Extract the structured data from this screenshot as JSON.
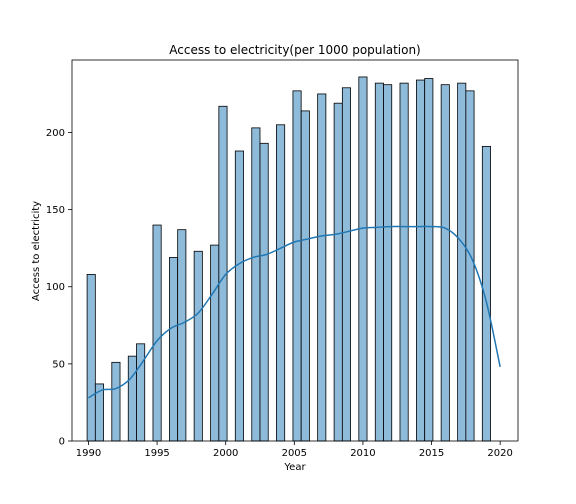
{
  "chart_data": {
    "type": "bar",
    "title": "Access to electricity(per 1000 population)",
    "xlabel": "Year",
    "ylabel": "Access to electricity",
    "xlim": [
      1988.8,
      2021.3
    ],
    "ylim": [
      0,
      247
    ],
    "xticks": [
      1990,
      1995,
      2000,
      2005,
      2010,
      2015,
      2020
    ],
    "yticks": [
      0,
      50,
      100,
      150,
      200
    ],
    "grid": false,
    "bar_width_years": 0.6,
    "bar_color": "#8fbbda",
    "line_color": "#1f77b4",
    "bars": [
      {
        "x": 1990.2,
        "value": 108
      },
      {
        "x": 1990.8,
        "value": 37
      },
      {
        "x": 1992.0,
        "value": 51
      },
      {
        "x": 1993.2,
        "value": 55
      },
      {
        "x": 1993.8,
        "value": 63
      },
      {
        "x": 1995.0,
        "value": 140
      },
      {
        "x": 1996.2,
        "value": 119
      },
      {
        "x": 1996.8,
        "value": 137
      },
      {
        "x": 1998.0,
        "value": 123
      },
      {
        "x": 1999.2,
        "value": 127
      },
      {
        "x": 1999.8,
        "value": 217
      },
      {
        "x": 2001.0,
        "value": 188
      },
      {
        "x": 2002.2,
        "value": 203
      },
      {
        "x": 2002.8,
        "value": 193
      },
      {
        "x": 2004.0,
        "value": 205
      },
      {
        "x": 2005.2,
        "value": 227
      },
      {
        "x": 2005.8,
        "value": 214
      },
      {
        "x": 2007.0,
        "value": 225
      },
      {
        "x": 2008.2,
        "value": 219
      },
      {
        "x": 2008.8,
        "value": 229
      },
      {
        "x": 2010.0,
        "value": 236
      },
      {
        "x": 2011.2,
        "value": 232
      },
      {
        "x": 2011.8,
        "value": 231
      },
      {
        "x": 2013.0,
        "value": 232
      },
      {
        "x": 2014.2,
        "value": 234
      },
      {
        "x": 2014.8,
        "value": 235
      },
      {
        "x": 2016.0,
        "value": 231
      },
      {
        "x": 2017.2,
        "value": 232
      },
      {
        "x": 2017.8,
        "value": 227
      },
      {
        "x": 2019.0,
        "value": 191
      }
    ],
    "kde_line": [
      [
        1990,
        28
      ],
      [
        1991,
        33
      ],
      [
        1992,
        34
      ],
      [
        1993,
        40
      ],
      [
        1994,
        52
      ],
      [
        1995,
        65
      ],
      [
        1996,
        73
      ],
      [
        1997,
        77
      ],
      [
        1998,
        83
      ],
      [
        1999,
        95
      ],
      [
        2000,
        108
      ],
      [
        2001,
        115
      ],
      [
        2002,
        119
      ],
      [
        2003,
        121
      ],
      [
        2004,
        125
      ],
      [
        2005,
        129
      ],
      [
        2006,
        131
      ],
      [
        2007,
        133
      ],
      [
        2008,
        134
      ],
      [
        2009,
        136
      ],
      [
        2010,
        138
      ],
      [
        2011,
        138.5
      ],
      [
        2012,
        139
      ],
      [
        2013,
        139
      ],
      [
        2014,
        139
      ],
      [
        2015,
        139
      ],
      [
        2016,
        138
      ],
      [
        2017,
        131
      ],
      [
        2018,
        117
      ],
      [
        2019,
        90
      ],
      [
        2020,
        48
      ]
    ]
  }
}
